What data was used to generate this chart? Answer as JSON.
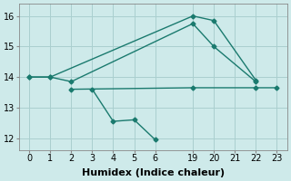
{
  "background_color": "#ceeaea",
  "grid_color": "#aacfcf",
  "line_color": "#1a7a6e",
  "line_width": 1.0,
  "marker": "D",
  "marker_size": 2.5,
  "series": [
    {
      "x": [
        0,
        1,
        19,
        20,
        22
      ],
      "y": [
        14.0,
        14.0,
        16.0,
        15.85,
        13.9
      ]
    },
    {
      "x": [
        0,
        1,
        2,
        19,
        20,
        22
      ],
      "y": [
        14.0,
        14.0,
        13.85,
        15.75,
        15.0,
        13.85
      ]
    },
    {
      "x": [
        2,
        19,
        22,
        23
      ],
      "y": [
        13.6,
        13.65,
        13.65,
        13.65
      ]
    },
    {
      "x": [
        3,
        4,
        5,
        6
      ],
      "y": [
        13.6,
        12.55,
        12.6,
        11.95
      ]
    }
  ],
  "xtick_positions": [
    0,
    1,
    2,
    3,
    4,
    5,
    6,
    19,
    20,
    21,
    22,
    23
  ],
  "xtick_labels": [
    "0",
    "1",
    "2",
    "3",
    "4",
    "5",
    "6",
    "19",
    "20",
    "21",
    "22",
    "23"
  ],
  "yticks": [
    12,
    13,
    14,
    15,
    16
  ],
  "xlim": [
    -0.5,
    23.8
  ],
  "ylim": [
    11.6,
    16.4
  ],
  "xlabel": "Humidex (Indice chaleur)",
  "xlabel_fontsize": 8,
  "tick_fontsize": 7
}
